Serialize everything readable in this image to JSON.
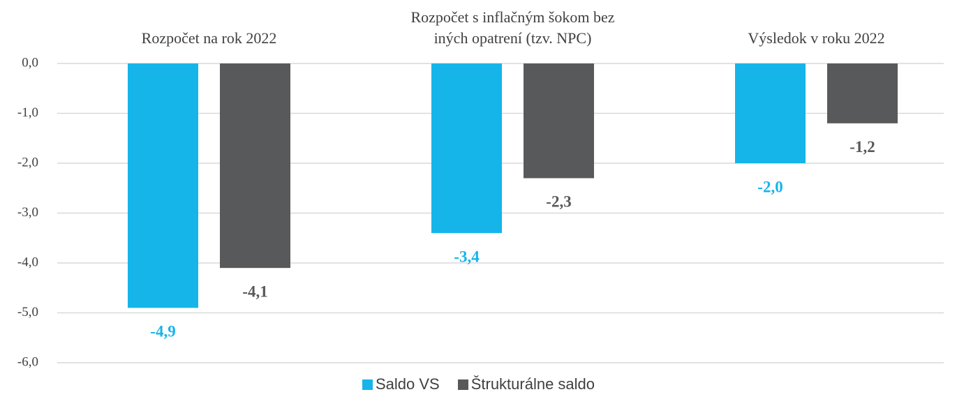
{
  "chart_data": {
    "type": "bar",
    "categories": [
      "Rozpočet na rok 2022",
      "Rozpočet s inflačným šokom bez\niných opatrení (tzv. NPC)",
      "Výsledok v roku 2022"
    ],
    "series": [
      {
        "name": "Saldo VS",
        "color": "#15b5e9",
        "values": [
          -4.9,
          -3.4,
          -2.0
        ],
        "value_labels": [
          "-4,9",
          "-3,4",
          "-2,0"
        ]
      },
      {
        "name": "Štrukturálne saldo",
        "color": "#58595b",
        "values": [
          -4.1,
          -2.3,
          -1.2
        ],
        "value_labels": [
          "-4,1",
          "-2,3",
          "-1,2"
        ]
      }
    ],
    "ylim": [
      -6,
      0
    ],
    "yticks": [
      {
        "value": 0,
        "label": "0,0"
      },
      {
        "value": -1,
        "label": "-1,0"
      },
      {
        "value": -2,
        "label": "-2,0"
      },
      {
        "value": -3,
        "label": "-3,0"
      },
      {
        "value": -4,
        "label": "-4,0"
      },
      {
        "value": -5,
        "label": "-5,0"
      },
      {
        "value": -6,
        "label": "-6,0"
      }
    ],
    "grid": true,
    "legend": "bottom"
  }
}
